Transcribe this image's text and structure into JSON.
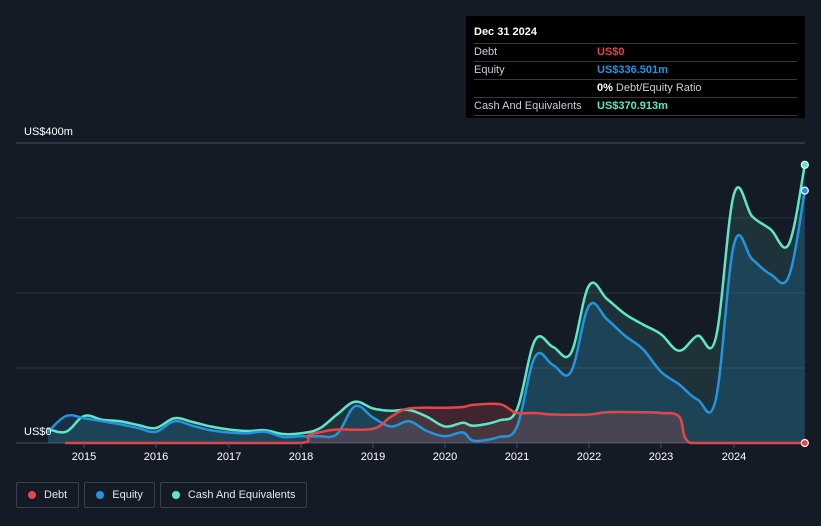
{
  "chart_data": {
    "type": "area",
    "y_unit_label_top": "US$400m",
    "y_unit_label_bottom": "US$0",
    "ylim": [
      0,
      400
    ],
    "xlim": [
      2014.5,
      2025.0
    ],
    "grid": true,
    "legend_placement": "bottom-left",
    "x_ticks": [
      "2015",
      "2016",
      "2017",
      "2018",
      "2019",
      "2020",
      "2021",
      "2022",
      "2023",
      "2024"
    ],
    "x_tick_values": [
      2015,
      2016,
      2017,
      2018,
      2019,
      2020,
      2021,
      2022,
      2023,
      2024
    ],
    "series": [
      {
        "name": "Debt",
        "color": "#e0474c",
        "points": [
          [
            2014.75,
            0
          ],
          [
            2015.0,
            0
          ],
          [
            2016.0,
            0
          ],
          [
            2017.0,
            0
          ],
          [
            2018.0,
            0
          ],
          [
            2018.1,
            10
          ],
          [
            2018.3,
            15
          ],
          [
            2018.5,
            18
          ],
          [
            2019.0,
            19
          ],
          [
            2019.25,
            35
          ],
          [
            2019.5,
            46
          ],
          [
            2020.0,
            47
          ],
          [
            2020.25,
            48
          ],
          [
            2020.4,
            51
          ],
          [
            2020.75,
            52
          ],
          [
            2020.9,
            45
          ],
          [
            2021.0,
            40
          ],
          [
            2021.25,
            40
          ],
          [
            2021.5,
            38
          ],
          [
            2022.0,
            38
          ],
          [
            2022.25,
            41
          ],
          [
            2022.75,
            41
          ],
          [
            2023.0,
            40
          ],
          [
            2023.25,
            35
          ],
          [
            2023.4,
            0
          ],
          [
            2024.0,
            0
          ],
          [
            2024.97,
            0
          ]
        ]
      },
      {
        "name": "Equity",
        "color": "#2394df",
        "points": [
          [
            2014.5,
            15
          ],
          [
            2014.75,
            36
          ],
          [
            2015.0,
            33
          ],
          [
            2015.25,
            29
          ],
          [
            2015.5,
            25
          ],
          [
            2015.75,
            20
          ],
          [
            2016.0,
            15
          ],
          [
            2016.25,
            29
          ],
          [
            2016.5,
            23
          ],
          [
            2016.75,
            17
          ],
          [
            2017.0,
            14
          ],
          [
            2017.25,
            13
          ],
          [
            2017.5,
            15
          ],
          [
            2017.75,
            8
          ],
          [
            2018.0,
            9
          ],
          [
            2018.25,
            9
          ],
          [
            2018.5,
            12
          ],
          [
            2018.75,
            49
          ],
          [
            2019.0,
            34
          ],
          [
            2019.25,
            22
          ],
          [
            2019.5,
            29
          ],
          [
            2019.75,
            16
          ],
          [
            2020.0,
            9
          ],
          [
            2020.25,
            14
          ],
          [
            2020.4,
            3
          ],
          [
            2020.75,
            8
          ],
          [
            2021.0,
            22
          ],
          [
            2021.25,
            115
          ],
          [
            2021.5,
            104
          ],
          [
            2021.75,
            95
          ],
          [
            2022.0,
            183
          ],
          [
            2022.25,
            165
          ],
          [
            2022.5,
            143
          ],
          [
            2022.75,
            125
          ],
          [
            2023.0,
            95
          ],
          [
            2023.25,
            78
          ],
          [
            2023.5,
            58
          ],
          [
            2023.75,
            58
          ],
          [
            2024.0,
            265
          ],
          [
            2024.25,
            245
          ],
          [
            2024.5,
            225
          ],
          [
            2024.75,
            222
          ],
          [
            2024.97,
            336.501
          ]
        ]
      },
      {
        "name": "Cash And Equivalents",
        "color": "#5de7c7",
        "points": [
          [
            2014.5,
            19
          ],
          [
            2014.75,
            15
          ],
          [
            2015.0,
            36
          ],
          [
            2015.25,
            31
          ],
          [
            2015.5,
            29
          ],
          [
            2015.75,
            24
          ],
          [
            2016.0,
            20
          ],
          [
            2016.25,
            33
          ],
          [
            2016.5,
            28
          ],
          [
            2016.75,
            22
          ],
          [
            2017.0,
            18
          ],
          [
            2017.25,
            16
          ],
          [
            2017.5,
            17
          ],
          [
            2017.75,
            12
          ],
          [
            2018.0,
            13
          ],
          [
            2018.25,
            19
          ],
          [
            2018.5,
            38
          ],
          [
            2018.75,
            55
          ],
          [
            2019.0,
            46
          ],
          [
            2019.25,
            43
          ],
          [
            2019.5,
            44
          ],
          [
            2019.75,
            35
          ],
          [
            2020.0,
            22
          ],
          [
            2020.25,
            27
          ],
          [
            2020.4,
            23
          ],
          [
            2020.75,
            30
          ],
          [
            2021.0,
            45
          ],
          [
            2021.25,
            137
          ],
          [
            2021.5,
            128
          ],
          [
            2021.75,
            120
          ],
          [
            2022.0,
            210
          ],
          [
            2022.25,
            192
          ],
          [
            2022.5,
            172
          ],
          [
            2022.75,
            158
          ],
          [
            2023.0,
            145
          ],
          [
            2023.25,
            123
          ],
          [
            2023.5,
            143
          ],
          [
            2023.75,
            140
          ],
          [
            2024.0,
            332
          ],
          [
            2024.25,
            302
          ],
          [
            2024.5,
            285
          ],
          [
            2024.75,
            265
          ],
          [
            2024.97,
            370.913
          ]
        ]
      }
    ]
  },
  "tooltip": {
    "date": "Dec 31 2024",
    "rows": {
      "debt": {
        "label": "Debt",
        "value": "US$0",
        "color": "#e0474c"
      },
      "equity": {
        "label": "Equity",
        "value": "US$336.501m",
        "color": "#2394df"
      },
      "ratio": {
        "value": "0%",
        "text": "Debt/Equity Ratio"
      },
      "cash": {
        "label": "Cash And Equivalents",
        "value": "US$370.913m",
        "color": "#5de7c7"
      }
    }
  },
  "legend": {
    "items": [
      {
        "label": "Debt",
        "color": "#e0474c"
      },
      {
        "label": "Equity",
        "color": "#2394df"
      },
      {
        "label": "Cash And Equivalents",
        "color": "#5de7c7"
      }
    ]
  }
}
